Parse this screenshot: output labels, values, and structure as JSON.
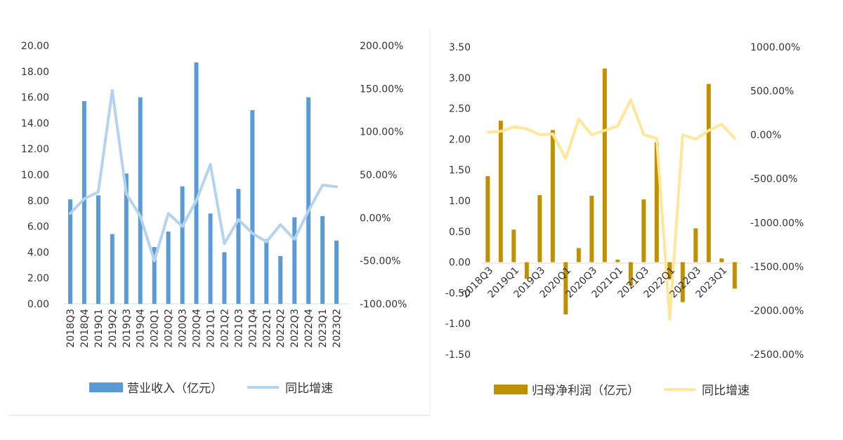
{
  "chart_data": [
    {
      "type": "bar",
      "categories": [
        "2018Q3",
        "2018Q4",
        "2019Q1",
        "2019Q2",
        "2019Q3",
        "2019Q4",
        "2020Q1",
        "2020Q2",
        "2020Q3",
        "2020Q4",
        "2021Q1",
        "2021Q2",
        "2021Q3",
        "2021Q4",
        "2022Q1",
        "2022Q2",
        "2022Q3",
        "2022Q4",
        "2023Q1",
        "2023Q2"
      ],
      "series": [
        {
          "name": "营业收入（亿元）",
          "kind": "bar",
          "axis": "left",
          "color": "#5b9bd5",
          "values": [
            8.1,
            15.7,
            8.4,
            5.4,
            10.1,
            16.0,
            4.4,
            5.6,
            9.1,
            18.7,
            7.0,
            4.0,
            8.9,
            15.0,
            5.0,
            3.7,
            6.7,
            16.0,
            6.8,
            4.9
          ]
        },
        {
          "name": "同比增速",
          "kind": "line",
          "axis": "right",
          "color": "#b4d3ee",
          "values": [
            5,
            22,
            30,
            148,
            28,
            2,
            -50,
            5,
            -10,
            20,
            62,
            -30,
            -2,
            -18,
            -28,
            -8,
            -25,
            8,
            38,
            36
          ]
        }
      ],
      "y_left": {
        "min": 0,
        "max": 20,
        "ticks": [
          "0.00",
          "2.00",
          "4.00",
          "6.00",
          "8.00",
          "10.00",
          "12.00",
          "14.00",
          "16.00",
          "18.00",
          "20.00"
        ]
      },
      "y_right": {
        "min": -100,
        "max": 200,
        "ticks": [
          "-100.00%",
          "-50.00%",
          "0.00%",
          "50.00%",
          "100.00%",
          "150.00%",
          "200.00%"
        ]
      },
      "legend": [
        "营业收入（亿元）",
        "同比增速"
      ],
      "legend_position": "bottom",
      "grid": false
    },
    {
      "type": "bar",
      "categories": [
        "2018Q3",
        "2018Q4",
        "2019Q1",
        "2019Q2",
        "2019Q3",
        "2019Q4",
        "2020Q1",
        "2020Q2",
        "2020Q3",
        "2020Q4",
        "2021Q1",
        "2021Q2",
        "2021Q3",
        "2021Q4",
        "2022Q1",
        "2022Q2",
        "2022Q3",
        "2022Q4",
        "2023Q1",
        "2023Q2"
      ],
      "x_tick_labels": [
        "2018Q3",
        "2019Q1",
        "2019Q3",
        "2020Q1",
        "2020Q3",
        "2021Q1",
        "2021Q3",
        "2022Q1",
        "2022Q3",
        "2023Q1"
      ],
      "series": [
        {
          "name": "归母净利润（亿元）",
          "kind": "bar",
          "axis": "left",
          "color": "#bf9000",
          "values": [
            1.4,
            2.3,
            0.53,
            -0.27,
            1.09,
            2.15,
            -0.85,
            0.23,
            1.08,
            3.15,
            0.04,
            -0.38,
            1.02,
            1.95,
            -0.28,
            -0.65,
            0.55,
            2.9,
            0.06,
            -0.43
          ]
        },
        {
          "name": "同比增速",
          "kind": "line",
          "axis": "right",
          "color": "#ffe699",
          "values": [
            30,
            40,
            90,
            70,
            0,
            10,
            -270,
            180,
            0,
            50,
            100,
            400,
            0,
            -40,
            -2100,
            0,
            -50,
            50,
            120,
            -40
          ]
        }
      ],
      "y_left": {
        "min": -1.5,
        "max": 3.5,
        "ticks": [
          "-1.50",
          "-1.00",
          "-0.50",
          "0.00",
          "0.50",
          "1.00",
          "1.50",
          "2.00",
          "2.50",
          "3.00",
          "3.50"
        ]
      },
      "y_right": {
        "min": -2500,
        "max": 1000,
        "ticks": [
          "-2500.00%",
          "-2000.00%",
          "-1500.00%",
          "-1000.00%",
          "-500.00%",
          "0.00%",
          "500.00%",
          "1000.00%"
        ]
      },
      "legend": [
        "归母净利润（亿元）",
        "同比增速"
      ],
      "legend_position": "bottom",
      "grid": false
    }
  ]
}
